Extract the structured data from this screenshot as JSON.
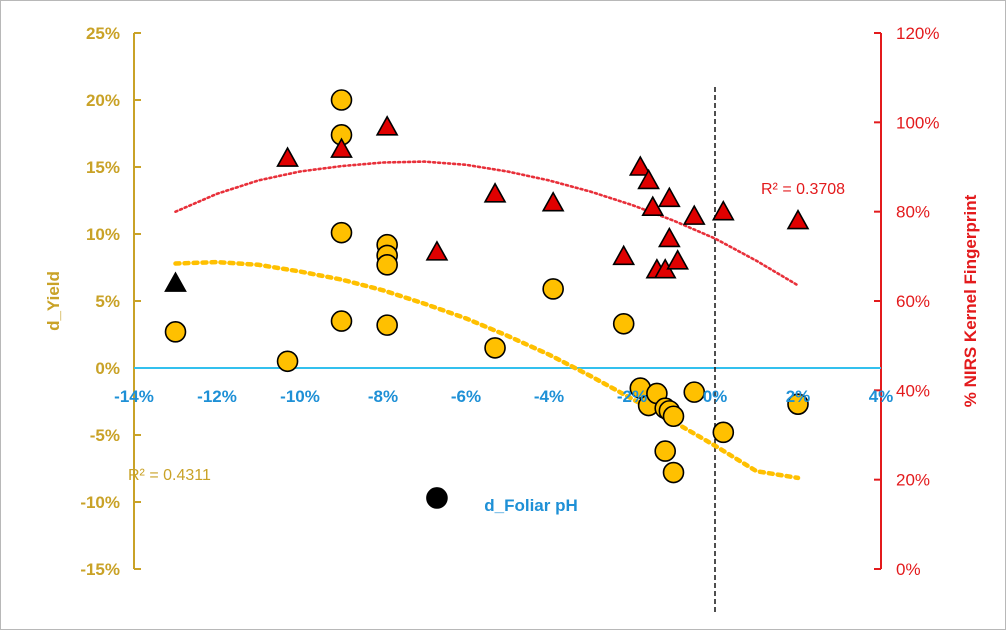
{
  "chart_data": {
    "type": "scatter",
    "title": "",
    "xlabel": "d_Foliar pH",
    "ylabel": "d_Yield",
    "y2label": "% NIRS Kernel Fingerprint",
    "xlim": [
      -0.14,
      0.04
    ],
    "ylim": [
      -0.15,
      0.25
    ],
    "y2lim": [
      0,
      1.2
    ],
    "x_ticks": [
      -0.14,
      -0.12,
      -0.1,
      -0.08,
      -0.06,
      -0.04,
      -0.02,
      0.0,
      0.02,
      0.04
    ],
    "x_tick_labels": [
      "-14%",
      "-12%",
      "-10%",
      "-8%",
      "-6%",
      "-4%",
      "-2%",
      "0%",
      "2%",
      "4%"
    ],
    "y_ticks": [
      -0.15,
      -0.1,
      -0.05,
      0.0,
      0.05,
      0.1,
      0.15,
      0.2,
      0.25
    ],
    "y_tick_labels": [
      "-15%",
      "-10%",
      "-5%",
      "0%",
      "5%",
      "10%",
      "15%",
      "20%",
      "25%"
    ],
    "y2_ticks": [
      0,
      0.2,
      0.4,
      0.6,
      0.8,
      1.0,
      1.2
    ],
    "y2_tick_labels": [
      "0%",
      "20%",
      "40%",
      "60%",
      "80%",
      "100%",
      "120%"
    ],
    "grid": false,
    "colors": {
      "yield_axis": "#c9a227",
      "x_axis": "#1e90d6",
      "zero_line": "#33c0ee",
      "fingerprint_axis": "#e31a1c",
      "yield_fill": "#ffc000",
      "yield_trend": "#ffc000",
      "fingerprint_fill": "#e00000",
      "fingerprint_trend": "#e8303a",
      "outlier": "#000000"
    },
    "series": [
      {
        "axis": "left",
        "marker": "circle",
        "points": [
          [
            -0.13,
            0.027
          ],
          [
            -0.103,
            0.005
          ],
          [
            -0.09,
            0.2
          ],
          [
            -0.09,
            0.174
          ],
          [
            -0.09,
            0.101
          ],
          [
            -0.09,
            0.035
          ],
          [
            -0.079,
            0.092
          ],
          [
            -0.079,
            0.084
          ],
          [
            -0.079,
            0.077
          ],
          [
            -0.079,
            0.032
          ],
          [
            -0.053,
            0.015
          ],
          [
            -0.039,
            0.059
          ],
          [
            -0.022,
            0.033
          ],
          [
            -0.018,
            -0.015
          ],
          [
            -0.016,
            -0.028
          ],
          [
            -0.014,
            -0.019
          ],
          [
            -0.012,
            -0.062
          ],
          [
            -0.012,
            -0.03
          ],
          [
            -0.011,
            -0.032
          ],
          [
            -0.01,
            -0.078
          ],
          [
            -0.01,
            -0.036
          ],
          [
            -0.005,
            -0.018
          ],
          [
            0.002,
            -0.048
          ],
          [
            0.02,
            -0.027
          ]
        ]
      },
      {
        "axis": "right",
        "marker": "triangle",
        "points": [
          [
            -0.103,
            0.92
          ],
          [
            -0.09,
            0.94
          ],
          [
            -0.079,
            0.99
          ],
          [
            -0.067,
            0.71
          ],
          [
            -0.053,
            0.84
          ],
          [
            -0.039,
            0.82
          ],
          [
            -0.022,
            0.7
          ],
          [
            -0.018,
            0.9
          ],
          [
            -0.016,
            0.87
          ],
          [
            -0.015,
            0.81
          ],
          [
            -0.014,
            0.67
          ],
          [
            -0.012,
            0.67
          ],
          [
            -0.011,
            0.83
          ],
          [
            -0.011,
            0.74
          ],
          [
            -0.009,
            0.69
          ],
          [
            -0.005,
            0.79
          ],
          [
            0.002,
            0.8
          ],
          [
            0.02,
            0.78
          ]
        ]
      },
      {
        "axis": "left",
        "marker": "circle",
        "points": [
          [
            -0.067,
            -0.097
          ]
        ]
      },
      {
        "axis": "right",
        "marker": "triangle",
        "points": [
          [
            -0.13,
            0.64
          ]
        ]
      }
    ],
    "trendlines": [
      {
        "axis": "left",
        "type": "polynomial",
        "r2_label": "R² = 0.4311",
        "points": [
          [
            -0.13,
            0.078
          ],
          [
            -0.12,
            0.079
          ],
          [
            -0.11,
            0.077
          ],
          [
            -0.1,
            0.072
          ],
          [
            -0.09,
            0.066
          ],
          [
            -0.08,
            0.058
          ],
          [
            -0.07,
            0.048
          ],
          [
            -0.06,
            0.037
          ],
          [
            -0.05,
            0.024
          ],
          [
            -0.04,
            0.01
          ],
          [
            -0.03,
            -0.006
          ],
          [
            -0.02,
            -0.023
          ],
          [
            -0.01,
            -0.04
          ],
          [
            0.0,
            -0.058
          ],
          [
            0.01,
            -0.077
          ],
          [
            0.02,
            -0.082
          ]
        ]
      },
      {
        "axis": "right",
        "type": "polynomial",
        "r2_label": "R² = 0.3708",
        "points": [
          [
            -0.13,
            0.8
          ],
          [
            -0.12,
            0.84
          ],
          [
            -0.11,
            0.87
          ],
          [
            -0.1,
            0.89
          ],
          [
            -0.09,
            0.902
          ],
          [
            -0.08,
            0.91
          ],
          [
            -0.07,
            0.912
          ],
          [
            -0.06,
            0.905
          ],
          [
            -0.05,
            0.89
          ],
          [
            -0.04,
            0.87
          ],
          [
            -0.03,
            0.845
          ],
          [
            -0.02,
            0.815
          ],
          [
            -0.01,
            0.78
          ],
          [
            0.0,
            0.74
          ],
          [
            0.01,
            0.69
          ],
          [
            0.02,
            0.635
          ]
        ]
      }
    ],
    "reference_line": {
      "x": 0.0,
      "style": "dashed"
    }
  }
}
